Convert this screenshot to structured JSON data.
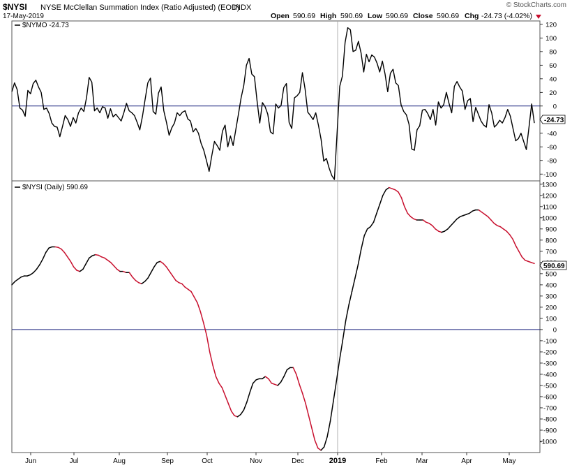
{
  "header": {
    "symbol": "$NYSI",
    "title": "NYSE McClellan Summation Index (Ratio Adjusted) (EOD)",
    "exchange": "INDX",
    "date": "17-May-2019",
    "copyright": "© StockCharts.com",
    "ohlc": {
      "open_label": "Open",
      "open": "590.69",
      "high_label": "High",
      "high": "590.69",
      "low_label": "Low",
      "low": "590.69",
      "close_label": "Close",
      "close": "590.69",
      "chg_label": "Chg",
      "chg": "-24.73 (-4.02%)"
    }
  },
  "colors": {
    "line": "#000000",
    "down": "#c8102e",
    "zero": "#1a237e",
    "grid": "#9e9e9e"
  },
  "chart_data": [
    {
      "type": "line",
      "legend": "$NYMO -24.73",
      "last_value_label": "-24.73",
      "ylim": [
        -110,
        125
      ],
      "yticks": [
        120,
        100,
        80,
        60,
        40,
        20,
        0,
        -20,
        -40,
        -60,
        -80,
        -100
      ],
      "series": [
        {
          "name": "$NYMO",
          "values": [
            21,
            34,
            24,
            -3,
            -6,
            -15,
            23,
            18,
            33,
            38,
            28,
            20,
            -5,
            -3,
            -11,
            -25,
            -30,
            -31,
            -45,
            -30,
            -14,
            -20,
            -30,
            -17,
            -25,
            -10,
            -3,
            -8,
            12,
            42,
            35,
            -7,
            -3,
            -10,
            -1,
            -3,
            -18,
            -4,
            -16,
            -12,
            -17,
            -22,
            -10,
            4,
            -7,
            -10,
            -14,
            -24,
            -35,
            -15,
            10,
            34,
            41,
            -8,
            -12,
            19,
            28,
            -7,
            -24,
            -43,
            -32,
            -25,
            -10,
            -14,
            -9,
            -7,
            -19,
            -22,
            -38,
            -33,
            -40,
            -55,
            -65,
            -80,
            -96,
            -73,
            -52,
            -58,
            -65,
            -37,
            -28,
            -60,
            -44,
            -58,
            -35,
            -12,
            12,
            30,
            60,
            70,
            47,
            43,
            7,
            -25,
            5,
            -1,
            -12,
            -38,
            -41,
            3,
            -3,
            1,
            27,
            33,
            -24,
            -33,
            12,
            15,
            20,
            49,
            25,
            -9,
            -14,
            -20,
            -10,
            -28,
            -49,
            -81,
            -77,
            -91,
            -102,
            -108,
            -40,
            29,
            44,
            93,
            115,
            112,
            80,
            82,
            95,
            78,
            50,
            76,
            65,
            75,
            72,
            63,
            50,
            66,
            47,
            21,
            48,
            54,
            34,
            30,
            2,
            -8,
            -13,
            -27,
            -63,
            -65,
            -35,
            -29,
            -6,
            -5,
            -11,
            -20,
            -5,
            -28,
            6,
            -3,
            2,
            20,
            4,
            -10,
            29,
            36,
            28,
            22,
            -5,
            8,
            11,
            -23,
            -2,
            -12,
            -22,
            -28,
            -31,
            2,
            -10,
            -31,
            -27,
            -21,
            -25,
            -17,
            -5,
            -15,
            -33,
            -51,
            -48,
            -40,
            -52,
            -64,
            -31,
            3,
            -25
          ]
        }
      ]
    },
    {
      "type": "line",
      "legend": "$NYSI (Daily) 590.69",
      "last_value_label": "590.69",
      "ylim": [
        -1100,
        1330
      ],
      "yticks": [
        1300,
        1200,
        1100,
        1000,
        900,
        800,
        700,
        600,
        500,
        400,
        300,
        200,
        100,
        0,
        -100,
        -200,
        -300,
        -400,
        -500,
        -600,
        -700,
        -800,
        -900,
        -1000
      ],
      "xticks": [
        "Jun",
        "Jul",
        "Aug",
        "Sep",
        "Oct",
        "Nov",
        "Dec",
        "2019",
        "Feb",
        "Mar",
        "Apr",
        "May"
      ],
      "series": [
        {
          "name": "$NYSI (Daily)",
          "color_rule": "black when rising, red when falling",
          "values": [
            400,
            430,
            450,
            470,
            480,
            480,
            490,
            510,
            540,
            580,
            630,
            690,
            730,
            740,
            740,
            735,
            720,
            690,
            650,
            610,
            560,
            530,
            520,
            540,
            590,
            640,
            660,
            670,
            665,
            650,
            640,
            620,
            600,
            570,
            540,
            520,
            520,
            510,
            510,
            470,
            440,
            420,
            410,
            430,
            460,
            510,
            560,
            600,
            610,
            590,
            560,
            520,
            480,
            440,
            420,
            410,
            380,
            360,
            340,
            290,
            240,
            160,
            60,
            -50,
            -200,
            -320,
            -420,
            -480,
            -520,
            -590,
            -660,
            -730,
            -770,
            -780,
            -760,
            -720,
            -650,
            -560,
            -480,
            -450,
            -440,
            -440,
            -420,
            -440,
            -480,
            -490,
            -500,
            -470,
            -420,
            -360,
            -340,
            -340,
            -400,
            -490,
            -570,
            -660,
            -770,
            -880,
            -990,
            -1060,
            -1080,
            -1050,
            -960,
            -820,
            -640,
            -460,
            -270,
            -100,
            80,
            220,
            340,
            460,
            580,
            720,
            840,
            900,
            920,
            960,
            1040,
            1120,
            1200,
            1250,
            1270,
            1260,
            1250,
            1230,
            1180,
            1100,
            1040,
            1010,
            990,
            980,
            980,
            980,
            960,
            950,
            930,
            900,
            880,
            870,
            880,
            900,
            930,
            960,
            990,
            1010,
            1020,
            1030,
            1040,
            1060,
            1070,
            1070,
            1050,
            1030,
            1010,
            980,
            950,
            930,
            920,
            900,
            880,
            850,
            810,
            750,
            700,
            650,
            620,
            610,
            600,
            591
          ]
        }
      ]
    }
  ]
}
